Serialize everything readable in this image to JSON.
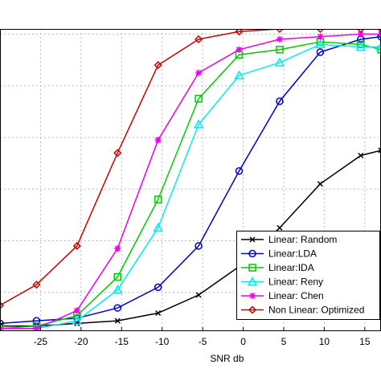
{
  "chart_data": {
    "type": "line",
    "title": "",
    "xlabel": "SNR db",
    "ylabel": "",
    "xlim": [
      -30,
      17
    ],
    "ylim": [
      0.05,
      1.22
    ],
    "xticks": [
      -25,
      -20,
      -15,
      -10,
      -5,
      0,
      5,
      10,
      15
    ],
    "xtick_labels": [
      "-25",
      "-20",
      "-15",
      "-10",
      "-5",
      "0",
      "5",
      "10",
      "15"
    ],
    "grid": true,
    "legend_position": "bottom-right",
    "x": [
      -30,
      -25.5,
      -20.5,
      -15.5,
      -10.5,
      -5.5,
      -0.5,
      4.5,
      9.5,
      14.5,
      17
    ],
    "series": [
      {
        "name": "Linear: Random",
        "color": "#000000",
        "marker": "x",
        "values": [
          0.07,
          0.07,
          0.08,
          0.09,
          0.12,
          0.19,
          0.3,
          0.45,
          0.62,
          0.73,
          0.75
        ]
      },
      {
        "name": "Linear:LDA",
        "color": "#0000cc",
        "marker": "circle",
        "values": [
          0.08,
          0.09,
          0.1,
          0.14,
          0.22,
          0.38,
          0.67,
          0.94,
          1.13,
          1.18,
          1.19
        ]
      },
      {
        "name": "Linear:IDA",
        "color": "#00cc00",
        "marker": "square",
        "values": [
          0.06,
          0.07,
          0.11,
          0.26,
          0.56,
          0.95,
          1.12,
          1.14,
          1.17,
          1.16,
          1.14
        ]
      },
      {
        "name": "Linear: Reny",
        "color": "#00eeee",
        "marker": "triangle",
        "values": [
          0.06,
          0.06,
          0.09,
          0.21,
          0.45,
          0.85,
          1.04,
          1.09,
          1.16,
          1.15,
          1.15
        ]
      },
      {
        "name": "Linear: Chen",
        "color": "#ee00ee",
        "marker": "star",
        "values": [
          0.06,
          0.06,
          0.13,
          0.37,
          0.79,
          1.05,
          1.14,
          1.18,
          1.19,
          1.2,
          1.2
        ]
      },
      {
        "name": "Non Linear: Optimized",
        "color": "#cc0000",
        "marker": "diamond",
        "values": [
          0.15,
          0.23,
          0.38,
          0.74,
          1.08,
          1.18,
          1.21,
          1.22,
          1.22,
          1.22,
          1.22
        ]
      }
    ]
  }
}
